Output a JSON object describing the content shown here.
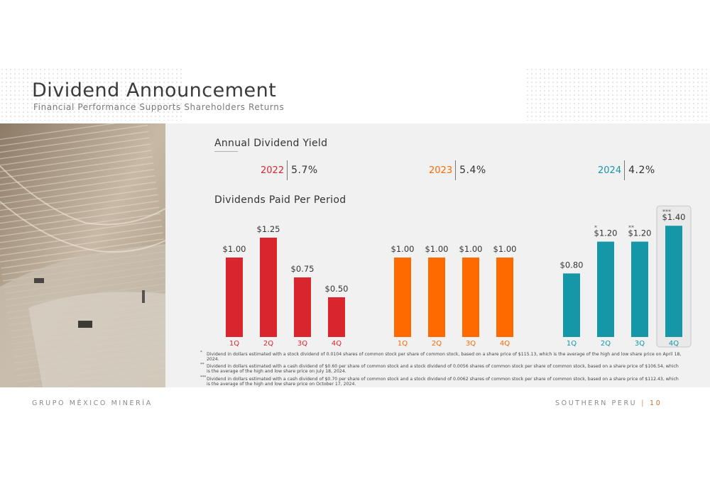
{
  "header": {
    "title": "Dividend Announcement",
    "subtitle": "Financial Performance Supports Shareholders Returns"
  },
  "yield_section": {
    "title": "Annual Dividend Yield",
    "items": [
      {
        "year": "2022",
        "yield": "5.7%",
        "color": "#d9262e"
      },
      {
        "year": "2023",
        "yield": "5.4%",
        "color": "#ff6a00"
      },
      {
        "year": "2024",
        "yield": "4.2%",
        "color": "#1597a8"
      }
    ]
  },
  "dividends_section": {
    "title": "Dividends Paid Per Period"
  },
  "chart_data": {
    "type": "bar",
    "ylim": [
      0,
      1.5
    ],
    "groups": [
      {
        "year": "2022",
        "color": "#d9262e",
        "categories": [
          "1Q",
          "2Q",
          "3Q",
          "4Q"
        ],
        "values": [
          1.0,
          1.25,
          0.75,
          0.5
        ],
        "labels": [
          "$1.00",
          "$1.25",
          "$0.75",
          "$0.50"
        ],
        "marks": [
          "",
          "",
          "",
          ""
        ]
      },
      {
        "year": "2023",
        "color": "#ff6a00",
        "categories": [
          "1Q",
          "2Q",
          "3Q",
          "4Q"
        ],
        "values": [
          1.0,
          1.0,
          1.0,
          1.0
        ],
        "labels": [
          "$1.00",
          "$1.00",
          "$1.00",
          "$1.00"
        ],
        "marks": [
          "",
          "",
          "",
          ""
        ]
      },
      {
        "year": "2024",
        "color": "#1597a8",
        "categories": [
          "1Q",
          "2Q",
          "3Q",
          "4Q"
        ],
        "values": [
          0.8,
          1.2,
          1.2,
          1.4
        ],
        "labels": [
          "$0.80",
          "$1.20",
          "$1.20",
          "$1.40"
        ],
        "marks": [
          "",
          "*",
          "**",
          "***"
        ],
        "highlighted": "4Q"
      }
    ]
  },
  "footnotes": [
    {
      "mark": "*",
      "text": "Dividend in dollars estimated with a stock dividend of 0.0104 shares of common stock per share of common stock, based on a share price of $115.13, which is the average of the high and low share price on April 18, 2024."
    },
    {
      "mark": "**",
      "text": "Dividend in dollars estimated with a cash dividend of $0.60 per share of common stock and a stock dividend of 0.0056 shares of common stock per share of common stock, based on a share price of $106.54, which is the average of the high and low share price on July 18, 2024."
    },
    {
      "mark": "***",
      "text": "Dividend in dollars estimated with a cash dividend of $0.70 per share of common stock and a stock dividend of 0.0062 shares of common stock per share of common stock, based on a share price of $112.43, which is the average of the high and low share price on October 17, 2024."
    }
  ],
  "footer": {
    "left": "GRUPO MÉXICO MINERÍA",
    "right": "SOUTHERN PERU",
    "separator": "|",
    "page": "10"
  }
}
